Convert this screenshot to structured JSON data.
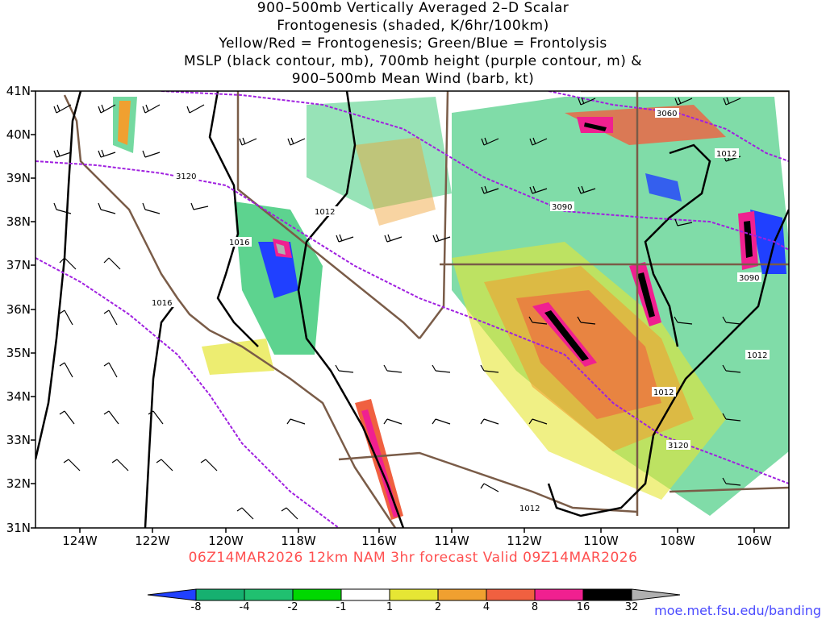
{
  "title_lines": [
    "900–500mb Vertically Averaged 2–D Scalar",
    "Frontogenesis (shaded, K/6hr/100km)",
    "Yellow/Red = Frontogenesis;  Green/Blue = Frontolysis",
    "MSLP (black contour, mb), 700mb height (purple contour, m) &",
    "900–500mb Mean Wind (barb, kt)"
  ],
  "valid_line": "06Z14MAR2026 12km NAM 3hr forecast Valid 09Z14MAR2026",
  "source_credit": "moe.met.fsu.edu/banding",
  "latitudes": [
    "41N",
    "40N",
    "39N",
    "38N",
    "37N",
    "36N",
    "35N",
    "34N",
    "33N",
    "32N",
    "31N"
  ],
  "longitudes": [
    "124W",
    "122W",
    "120W",
    "118W",
    "116W",
    "114W",
    "112W",
    "110W",
    "108W",
    "106W"
  ],
  "contour_labels": {
    "mslp": [
      "1012",
      "1016",
      "1016",
      "1012",
      "1012",
      "1012",
      "1012"
    ],
    "height": [
      "3120",
      "3090",
      "3060",
      "3090",
      "3120"
    ]
  },
  "colorbar": {
    "labels": [
      "-8",
      "-4",
      "-2",
      "-1",
      "1",
      "2",
      "4",
      "8",
      "16",
      "32"
    ],
    "colors": [
      "#2040ff",
      "#16b070",
      "#20c070",
      "#00d800",
      "#ffffff",
      "#e6e634",
      "#f0a030",
      "#f06040",
      "#f02090",
      "#000000",
      "#b0b0b0"
    ]
  },
  "colors": {
    "mslp_contour": "#000000",
    "height_contour": "#a020e0",
    "coastline": "#7a5c48",
    "valid_text": "#ff5050",
    "credit_text": "#4a4aff"
  }
}
